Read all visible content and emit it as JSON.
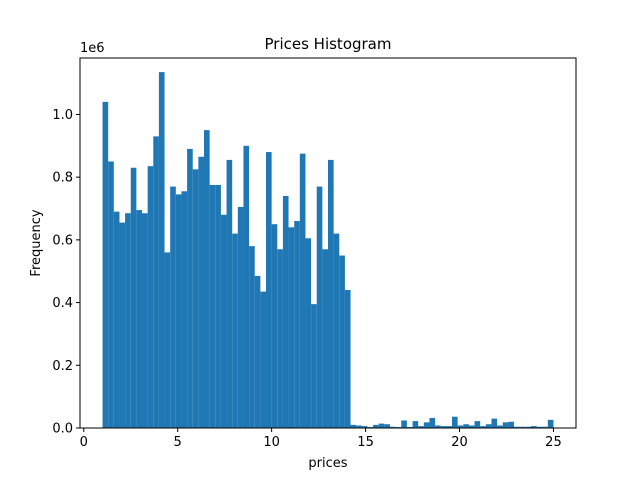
{
  "chart_data": {
    "type": "bar",
    "title": "Prices Histogram",
    "xlabel": "prices",
    "ylabel": "Frequency",
    "y_offset_label": "1e6",
    "xlim": [
      -0.2,
      26.2
    ],
    "ylim": [
      0,
      1.18
    ],
    "bin_width": 0.3,
    "bar_color": "#1f77b4",
    "grid": false,
    "legend": "none",
    "xticks": [
      0,
      5,
      10,
      15,
      20,
      25
    ],
    "xtick_labels": [
      "0",
      "5",
      "10",
      "15",
      "20",
      "25"
    ],
    "yticks": [
      0,
      0.2,
      0.4,
      0.6,
      0.8,
      1.0
    ],
    "ytick_labels": [
      "0.0",
      "0.2",
      "0.4",
      "0.6",
      "0.8",
      "1.0"
    ],
    "bin_starts": [
      1.0,
      1.3,
      1.6,
      1.9,
      2.2,
      2.5,
      2.8,
      3.1,
      3.4,
      3.7,
      4.0,
      4.3,
      4.6,
      4.9,
      5.2,
      5.5,
      5.8,
      6.1,
      6.4,
      6.7,
      7.0,
      7.3,
      7.6,
      7.9,
      8.2,
      8.5,
      8.8,
      9.1,
      9.4,
      9.7,
      10.0,
      10.3,
      10.6,
      10.9,
      11.2,
      11.5,
      11.8,
      12.1,
      12.4,
      12.7,
      13.0,
      13.3,
      13.6,
      13.9,
      14.2,
      14.5,
      14.8,
      15.1,
      15.4,
      15.7,
      16.0,
      16.3,
      16.6,
      16.9,
      17.2,
      17.5,
      17.8,
      18.1,
      18.4,
      18.7,
      19.0,
      19.3,
      19.6,
      19.9,
      20.2,
      20.5,
      20.8,
      21.1,
      21.4,
      21.7,
      22.0,
      22.3,
      22.6,
      22.9,
      23.2,
      23.5,
      23.8,
      24.1,
      24.4,
      24.7
    ],
    "values": [
      1.04,
      0.85,
      0.69,
      0.655,
      0.685,
      0.83,
      0.695,
      0.685,
      0.835,
      0.93,
      1.135,
      0.56,
      0.77,
      0.745,
      0.755,
      0.89,
      0.825,
      0.865,
      0.95,
      0.775,
      0.775,
      0.68,
      0.855,
      0.62,
      0.705,
      0.9,
      0.58,
      0.485,
      0.435,
      0.88,
      0.65,
      0.57,
      0.74,
      0.64,
      0.66,
      0.875,
      0.605,
      0.395,
      0.77,
      0.57,
      0.855,
      0.62,
      0.55,
      0.44,
      0.01,
      0.008,
      0.006,
      0.003,
      0.01,
      0.014,
      0.012,
      0.004,
      0.003,
      0.024,
      0.003,
      0.022,
      0.006,
      0.018,
      0.032,
      0.008,
      0.006,
      0.006,
      0.036,
      0.008,
      0.012,
      0.008,
      0.022,
      0.006,
      0.012,
      0.03,
      0.008,
      0.018,
      0.02,
      0.004,
      0.004,
      0.004,
      0.006,
      0.004,
      0.004,
      0.026
    ]
  }
}
